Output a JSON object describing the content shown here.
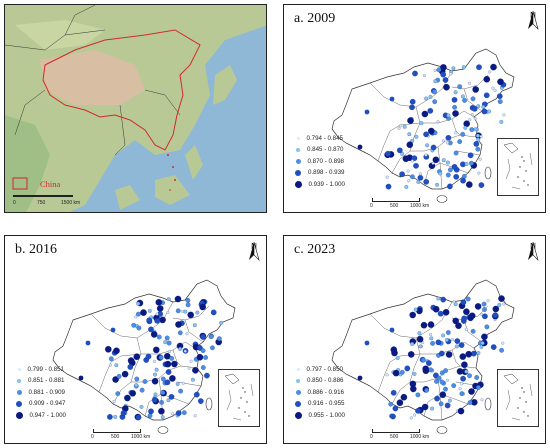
{
  "panels": [
    {
      "id": "overview",
      "china_label": "China",
      "scale": {
        "ticks": [
          "0",
          "750",
          "1500 km"
        ]
      }
    },
    {
      "id": "a",
      "title": "a. 2009",
      "north": "N",
      "scale": {
        "ticks": [
          "0",
          "500",
          "1000 km"
        ]
      },
      "legend": [
        {
          "label": "0.794 - 0.845",
          "color": "#d7ecf8",
          "size": 3
        },
        {
          "label": "0.845 - 0.870",
          "color": "#86c4ee",
          "size": 4
        },
        {
          "label": "0.870 - 0.898",
          "color": "#4a8ee4",
          "size": 5
        },
        {
          "label": "0.898 - 0.939",
          "color": "#1f4fc0",
          "size": 6
        },
        {
          "label": "0.939 - 1.000",
          "color": "#0a1a80",
          "size": 7
        }
      ]
    },
    {
      "id": "b",
      "title": "b. 2016",
      "north": "N",
      "scale": {
        "ticks": [
          "0",
          "500",
          "1000 km"
        ]
      },
      "legend": [
        {
          "label": "0.799 - 0.851",
          "color": "#d7ecf8",
          "size": 3
        },
        {
          "label": "0.851 - 0.881",
          "color": "#86c4ee",
          "size": 4
        },
        {
          "label": "0.881 - 0.909",
          "color": "#4a8ee4",
          "size": 5
        },
        {
          "label": "0.909 - 0.947",
          "color": "#1f4fc0",
          "size": 6
        },
        {
          "label": "0.947 - 1.000",
          "color": "#0a1a80",
          "size": 7
        }
      ]
    },
    {
      "id": "c",
      "title": "c. 2023",
      "north": "N",
      "scale": {
        "ticks": [
          "0",
          "500",
          "1000 km"
        ]
      },
      "legend": [
        {
          "label": "0.797 - 0.850",
          "color": "#d7ecf8",
          "size": 3
        },
        {
          "label": "0.850 - 0.886",
          "color": "#86c4ee",
          "size": 4
        },
        {
          "label": "0.886 - 0.916",
          "color": "#4a8ee4",
          "size": 5
        },
        {
          "label": "0.916 - 0.955",
          "color": "#1f4fc0",
          "size": 6
        },
        {
          "label": "0.955 - 1.000",
          "color": "#0a1a80",
          "size": 7
        }
      ]
    }
  ],
  "colors": {
    "border": "#222222",
    "china_outline": "#d12a2a",
    "ocean": "#8fb7d6",
    "land": "#a9c48e",
    "highland": "#d8b9a0"
  }
}
